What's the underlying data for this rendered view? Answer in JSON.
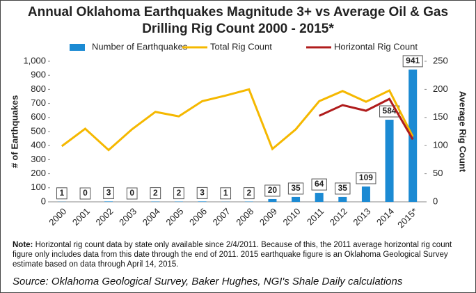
{
  "chart_data": {
    "type": "bar",
    "title": [
      "Annual Oklahoma Earthquakes Magnitude 3+ vs Average Oil & Gas",
      "Drilling Rig Count 2000 - 2015*"
    ],
    "categories": [
      "2000",
      "2001",
      "2002",
      "2003",
      "2004",
      "2005",
      "2006",
      "2007",
      "2008",
      "2009",
      "2010",
      "2011",
      "2012",
      "2013",
      "2014",
      "2015*"
    ],
    "series": [
      {
        "name": "Number of Earthquakes",
        "type": "bar",
        "axis": "y",
        "color": "#1b8ad3",
        "values": [
          1,
          0,
          3,
          0,
          2,
          2,
          3,
          1,
          2,
          20,
          35,
          64,
          35,
          109,
          584,
          941
        ]
      },
      {
        "name": "Total Rig Count",
        "type": "line",
        "axis": "y2",
        "color": "#f5b800",
        "values": [
          99,
          130,
          92,
          129,
          160,
          152,
          179,
          189,
          200,
          94,
          129,
          179,
          197,
          178,
          198,
          116
        ]
      },
      {
        "name": "Horizontal Rig Count",
        "type": "line",
        "axis": "y2",
        "color": "#b01c1c",
        "values": [
          null,
          null,
          null,
          null,
          null,
          null,
          null,
          null,
          null,
          null,
          null,
          153,
          172,
          162,
          183,
          111
        ]
      }
    ],
    "ylabel": "# of Earthquakes",
    "y2label": "Average Rig Count",
    "ylim": [
      0,
      1000
    ],
    "yticks": [
      0,
      100,
      200,
      300,
      400,
      500,
      600,
      700,
      800,
      900,
      {
        "value": 1000,
        "label": "1,000"
      }
    ],
    "y2lim": [
      0,
      250
    ],
    "y2ticks": [
      0,
      50,
      100,
      150,
      200,
      250
    ],
    "grid": false,
    "legend": "top",
    "note": {
      "label": "Note:",
      "text": "Horizontal rig count data by state only available since 2/4/2011. Because of this, the 2011 average horizontal rig count figure only includes data from this date through the end of 2011. 2015 earthquake figure is an Oklahoma Geological Survey estimate based on data through April 14, 2015."
    },
    "source": "Source: Oklahoma Geological Survey, Baker Hughes, NGI's Shale Daily calculations"
  }
}
